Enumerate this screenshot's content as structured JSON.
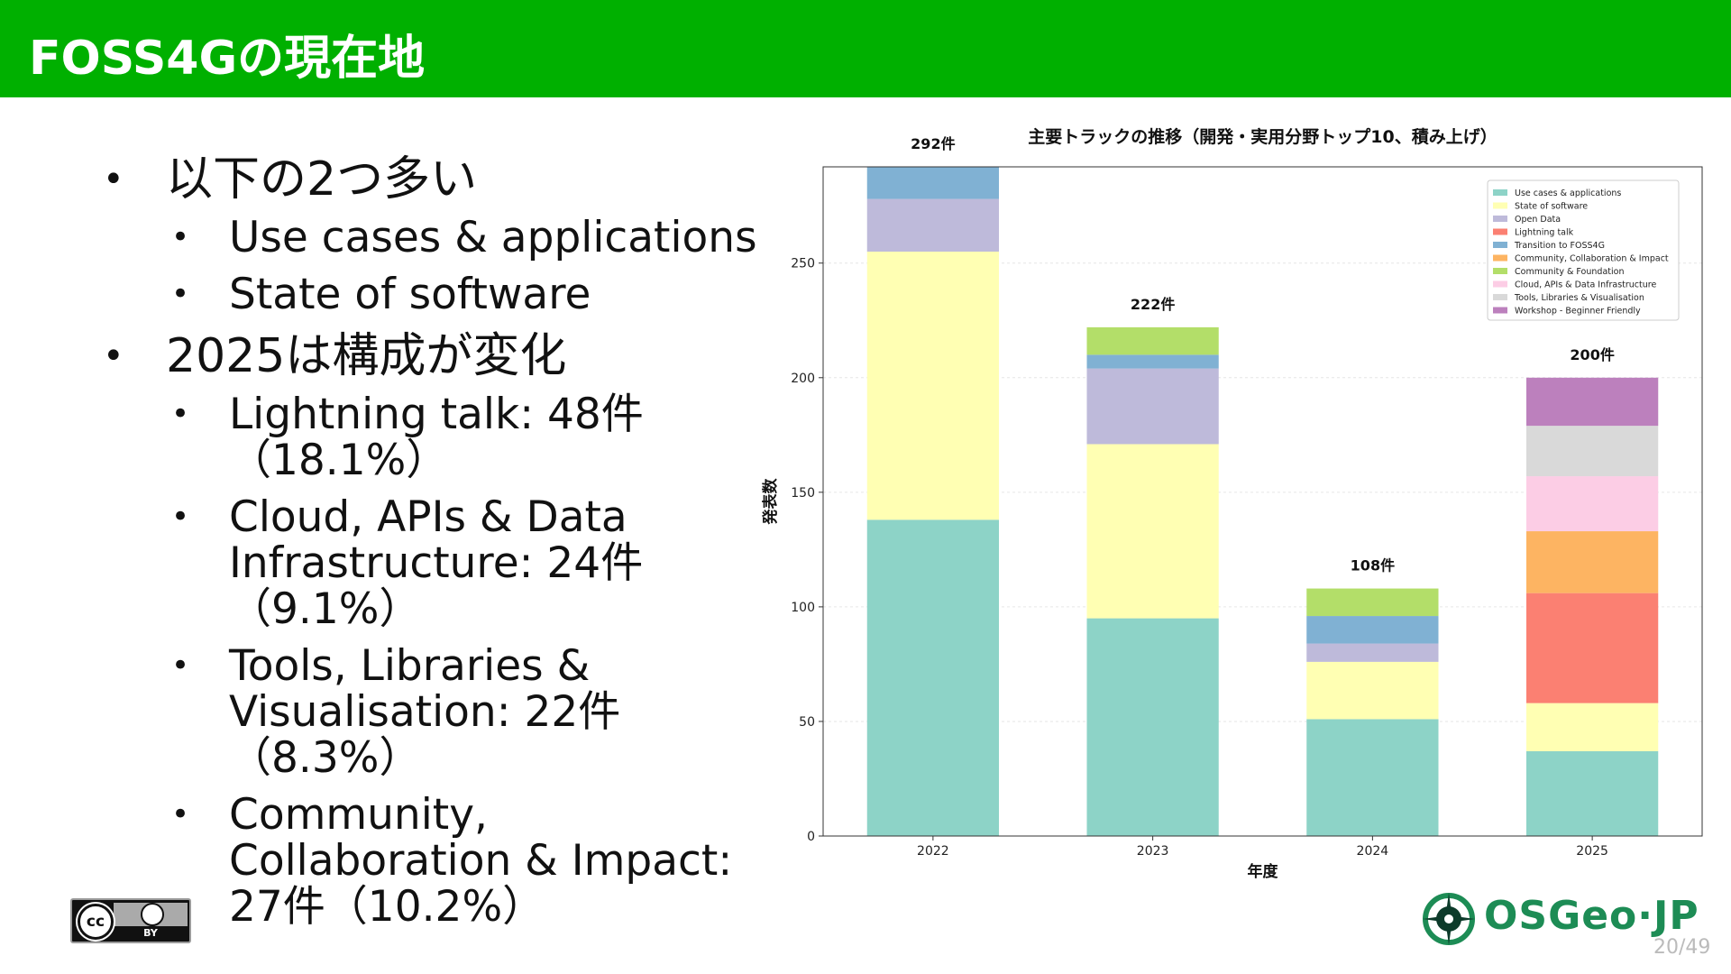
{
  "header": {
    "title": "FOSS4Gの現在地"
  },
  "bullets": [
    {
      "text": "以下の2つ多い",
      "children": [
        "Use cases & applications",
        "State of software"
      ]
    },
    {
      "text": "2025は構成が変化",
      "children": [
        "Lightning talk: 48件（18.1%）",
        "Cloud, APIs & Data Infrastructure: 24件（9.1%）",
        "Tools, Libraries & Visualisation: 22件（8.3%）",
        "Community, Collaboration & Impact: 27件（10.2%）"
      ]
    }
  ],
  "license": {
    "cc": "cc",
    "by": "BY"
  },
  "logo": {
    "text": "OSGeo·JP",
    "icon": "compass-icon"
  },
  "page": {
    "number": "20/49"
  },
  "chart_data": {
    "type": "bar",
    "stacked": true,
    "title": "主要トラックの推移（開発・実用分野トップ10、積み上げ）",
    "xlabel": "年度",
    "ylabel": "発表数",
    "ylim": [
      0,
      292
    ],
    "yticks": [
      0,
      50,
      100,
      150,
      200,
      250
    ],
    "grid": true,
    "legend_position": "top-right",
    "categories": [
      "2022",
      "2023",
      "2024",
      "2025"
    ],
    "totals_labels": [
      "292件",
      "222件",
      "108件",
      "200件"
    ],
    "series": [
      {
        "name": "Use cases & applications",
        "color": "#8dd3c7",
        "values": [
          138,
          95,
          51,
          37
        ]
      },
      {
        "name": "State of software",
        "color": "#ffffb3",
        "values": [
          117,
          76,
          25,
          21
        ]
      },
      {
        "name": "Open Data",
        "color": "#bebada",
        "values": [
          23,
          33,
          8,
          0
        ]
      },
      {
        "name": "Lightning talk",
        "color": "#fb8072",
        "values": [
          0,
          0,
          0,
          48
        ]
      },
      {
        "name": "Transition to FOSS4G",
        "color": "#80b1d3",
        "values": [
          14,
          6,
          12,
          0
        ]
      },
      {
        "name": "Community, Collaboration & Impact",
        "color": "#fdb462",
        "values": [
          0,
          0,
          0,
          27
        ]
      },
      {
        "name": "Community & Foundation",
        "color": "#b3de69",
        "values": [
          0,
          12,
          12,
          0
        ]
      },
      {
        "name": "Cloud, APIs & Data Infrastructure",
        "color": "#fccde5",
        "values": [
          0,
          0,
          0,
          24
        ]
      },
      {
        "name": "Tools, Libraries & Visualisation",
        "color": "#d9d9d9",
        "values": [
          0,
          0,
          0,
          22
        ]
      },
      {
        "name": "Workshop - Beginner Friendly",
        "color": "#bc80bd",
        "values": [
          0,
          0,
          0,
          21
        ]
      }
    ]
  }
}
